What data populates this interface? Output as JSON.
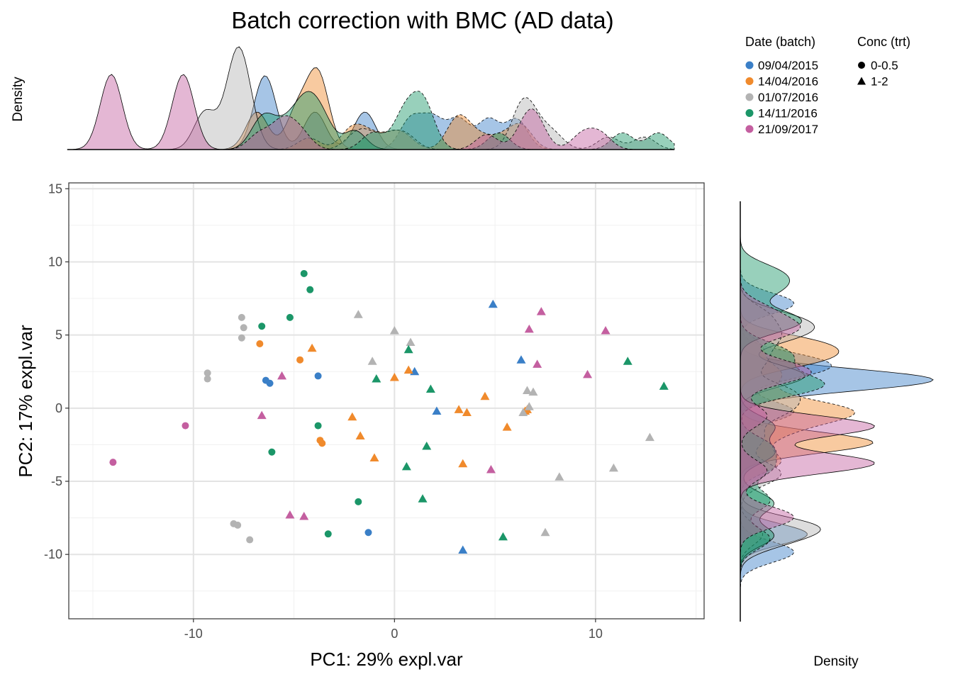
{
  "chart_data": {
    "type": "scatter",
    "title": "Batch correction with BMC (AD data)",
    "xlabel": "PC1: 29% expl.var",
    "ylabel": "PC2: 17% expl.var",
    "top_density_label": "Density",
    "right_density_label": "Density",
    "xlim": [
      -16.2,
      15.4
    ],
    "ylim": [
      -14.4,
      15.4
    ],
    "x_ticks": [
      -10,
      0,
      10
    ],
    "y_ticks": [
      15,
      10,
      5,
      0,
      -5,
      -10
    ],
    "grid": true,
    "legend_position": "top-right",
    "legend": {
      "color_title": "Date (batch)",
      "shape_title": "Conc (trt)",
      "batches": [
        {
          "label": "09/04/2015",
          "color": "#3a7fc7"
        },
        {
          "label": "14/04/2016",
          "color": "#f08a2c"
        },
        {
          "label": "01/07/2016",
          "color": "#b3b3b3"
        },
        {
          "label": "14/11/2016",
          "color": "#1b9668"
        },
        {
          "label": "21/09/2017",
          "color": "#c45fa0"
        }
      ],
      "shapes": [
        {
          "label": "0-0.5",
          "shape": "circle"
        },
        {
          "label": "1-2",
          "shape": "triangle"
        }
      ]
    },
    "series": [
      {
        "name": "09/04/2015",
        "points": [
          {
            "x": -6.4,
            "y": 1.9,
            "t": "0-0.5"
          },
          {
            "x": -6.2,
            "y": 1.7,
            "t": "0-0.5"
          },
          {
            "x": -3.8,
            "y": 2.2,
            "t": "0-0.5"
          },
          {
            "x": -1.3,
            "y": -8.5,
            "t": "0-0.5"
          },
          {
            "x": 4.9,
            "y": 7.1,
            "t": "1-2"
          },
          {
            "x": 6.3,
            "y": 3.3,
            "t": "1-2"
          },
          {
            "x": 1.0,
            "y": 2.5,
            "t": "1-2"
          },
          {
            "x": 2.1,
            "y": -0.2,
            "t": "1-2"
          },
          {
            "x": 3.4,
            "y": -9.7,
            "t": "1-2"
          }
        ]
      },
      {
        "name": "14/04/2016",
        "points": [
          {
            "x": -6.7,
            "y": 4.4,
            "t": "0-0.5"
          },
          {
            "x": -4.7,
            "y": 3.3,
            "t": "0-0.5"
          },
          {
            "x": -3.7,
            "y": -2.2,
            "t": "0-0.5"
          },
          {
            "x": -3.6,
            "y": -2.4,
            "t": "0-0.5"
          },
          {
            "x": -4.1,
            "y": 4.1,
            "t": "1-2"
          },
          {
            "x": 0.0,
            "y": 2.1,
            "t": "1-2"
          },
          {
            "x": 0.7,
            "y": 2.6,
            "t": "1-2"
          },
          {
            "x": -2.1,
            "y": -0.6,
            "t": "1-2"
          },
          {
            "x": -1.7,
            "y": -1.9,
            "t": "1-2"
          },
          {
            "x": -1.0,
            "y": -3.4,
            "t": "1-2"
          },
          {
            "x": 3.2,
            "y": -0.1,
            "t": "1-2"
          },
          {
            "x": 3.6,
            "y": -0.3,
            "t": "1-2"
          },
          {
            "x": 4.5,
            "y": 0.8,
            "t": "1-2"
          },
          {
            "x": 6.6,
            "y": -0.1,
            "t": "1-2"
          },
          {
            "x": 6.5,
            "y": -0.2,
            "t": "1-2"
          },
          {
            "x": 5.6,
            "y": -1.3,
            "t": "1-2"
          },
          {
            "x": 3.4,
            "y": -3.8,
            "t": "1-2"
          }
        ]
      },
      {
        "name": "01/07/2016",
        "points": [
          {
            "x": -7.6,
            "y": 6.2,
            "t": "0-0.5"
          },
          {
            "x": -7.5,
            "y": 5.5,
            "t": "0-0.5"
          },
          {
            "x": -7.6,
            "y": 4.8,
            "t": "0-0.5"
          },
          {
            "x": -9.3,
            "y": 2.4,
            "t": "0-0.5"
          },
          {
            "x": -9.3,
            "y": 2.0,
            "t": "0-0.5"
          },
          {
            "x": -8.0,
            "y": -7.9,
            "t": "0-0.5"
          },
          {
            "x": -7.8,
            "y": -8.0,
            "t": "0-0.5"
          },
          {
            "x": -7.2,
            "y": -9.0,
            "t": "0-0.5"
          },
          {
            "x": -1.8,
            "y": 6.4,
            "t": "1-2"
          },
          {
            "x": 0.0,
            "y": 5.3,
            "t": "1-2"
          },
          {
            "x": 0.8,
            "y": 4.5,
            "t": "1-2"
          },
          {
            "x": -1.1,
            "y": 3.2,
            "t": "1-2"
          },
          {
            "x": 6.6,
            "y": 1.2,
            "t": "1-2"
          },
          {
            "x": 6.9,
            "y": 1.1,
            "t": "1-2"
          },
          {
            "x": 6.7,
            "y": 0.1,
            "t": "1-2"
          },
          {
            "x": 6.4,
            "y": -0.3,
            "t": "1-2"
          },
          {
            "x": 12.7,
            "y": -2.0,
            "t": "1-2"
          },
          {
            "x": 10.9,
            "y": -4.1,
            "t": "1-2"
          },
          {
            "x": 8.2,
            "y": -4.7,
            "t": "1-2"
          },
          {
            "x": 7.5,
            "y": -8.5,
            "t": "1-2"
          }
        ]
      },
      {
        "name": "14/11/2016",
        "points": [
          {
            "x": -4.5,
            "y": 9.2,
            "t": "0-0.5"
          },
          {
            "x": -4.2,
            "y": 8.1,
            "t": "0-0.5"
          },
          {
            "x": -5.2,
            "y": 6.2,
            "t": "0-0.5"
          },
          {
            "x": -6.6,
            "y": 5.6,
            "t": "0-0.5"
          },
          {
            "x": -3.8,
            "y": -1.2,
            "t": "0-0.5"
          },
          {
            "x": -6.1,
            "y": -3.0,
            "t": "0-0.5"
          },
          {
            "x": -1.8,
            "y": -6.4,
            "t": "0-0.5"
          },
          {
            "x": -3.3,
            "y": -8.6,
            "t": "0-0.5"
          },
          {
            "x": 0.7,
            "y": 4.0,
            "t": "1-2"
          },
          {
            "x": -0.9,
            "y": 2.0,
            "t": "1-2"
          },
          {
            "x": 1.8,
            "y": 1.3,
            "t": "1-2"
          },
          {
            "x": 1.6,
            "y": -2.6,
            "t": "1-2"
          },
          {
            "x": 0.6,
            "y": -4.0,
            "t": "1-2"
          },
          {
            "x": 1.4,
            "y": -6.2,
            "t": "1-2"
          },
          {
            "x": 5.4,
            "y": -8.8,
            "t": "1-2"
          },
          {
            "x": 11.6,
            "y": 3.2,
            "t": "1-2"
          },
          {
            "x": 13.4,
            "y": 1.5,
            "t": "1-2"
          }
        ]
      },
      {
        "name": "21/09/2017",
        "points": [
          {
            "x": -10.4,
            "y": -1.2,
            "t": "0-0.5"
          },
          {
            "x": -14.0,
            "y": -3.7,
            "t": "0-0.5"
          },
          {
            "x": -5.6,
            "y": 2.2,
            "t": "1-2"
          },
          {
            "x": -6.6,
            "y": -0.5,
            "t": "1-2"
          },
          {
            "x": -5.2,
            "y": -7.3,
            "t": "1-2"
          },
          {
            "x": -4.5,
            "y": -7.4,
            "t": "1-2"
          },
          {
            "x": 4.8,
            "y": -4.2,
            "t": "1-2"
          },
          {
            "x": 7.3,
            "y": 6.6,
            "t": "1-2"
          },
          {
            "x": 6.7,
            "y": 5.4,
            "t": "1-2"
          },
          {
            "x": 7.1,
            "y": 3.0,
            "t": "1-2"
          },
          {
            "x": 9.6,
            "y": 2.3,
            "t": "1-2"
          },
          {
            "x": 10.5,
            "y": 5.3,
            "t": "1-2"
          }
        ]
      }
    ]
  }
}
